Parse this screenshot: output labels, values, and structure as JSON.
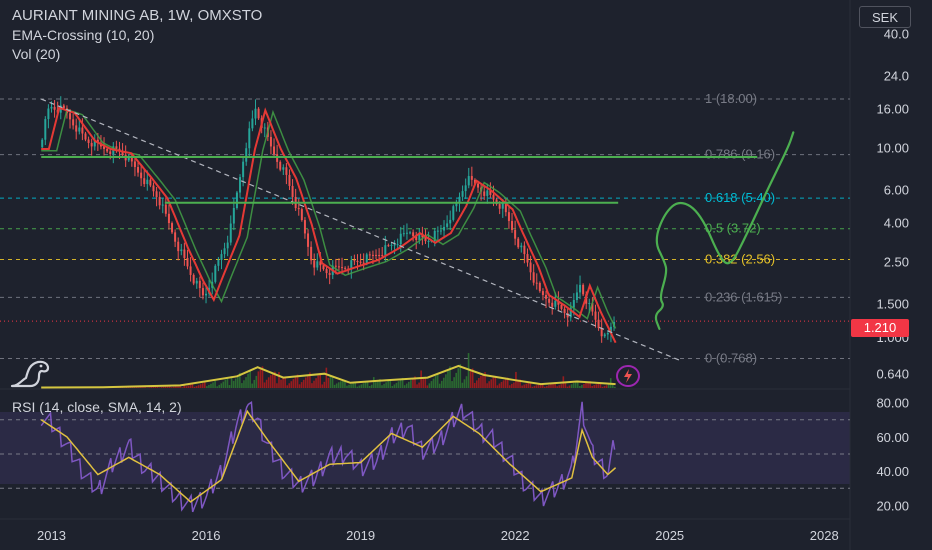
{
  "header": {
    "title": "AURIANT MINING AB, 1W, OMXSTO",
    "indicator_1": "EMA-Crossing (10, 20)",
    "indicator_2": "Vol (20)",
    "rsi_label": "RSI (14, close, SMA, 14, 2)",
    "currency": "SEK",
    "last_price": "1.210"
  },
  "icons": {
    "logo": "dinosaur-logo-icon",
    "event": "lightning-bolt-icon"
  },
  "colors": {
    "background": "#1e222d",
    "candle_up": "#26a69a",
    "candle_down": "#ef5350",
    "ema_red": "#e53935",
    "ema_green": "#43a047",
    "drawing_green": "#4caf50",
    "volume_ma": "#d4c640",
    "rsi_line": "#7e57c2",
    "rsi_ma": "#e0c040",
    "rsi_band": "#2b2a45",
    "last_price_badge": "#f23645"
  },
  "chart_data": [
    {
      "type": "candlestick",
      "title": "AURIANT MINING AB, 1W, OMXSTO",
      "y_scale": "log",
      "ylim": [
        0.53,
        60
      ],
      "xlim": [
        2012.0,
        2028.5
      ],
      "y_ticks": [
        "40.0",
        "24.0",
        "16.00",
        "10.00",
        "6.00",
        "4.00",
        "2.50",
        "1.500",
        "1.000",
        "0.640"
      ],
      "x_ticks": [
        "2013",
        "2016",
        "2019",
        "2022",
        "2025",
        "2028"
      ],
      "last_price": 1.21,
      "price_path": [
        [
          2012.8,
          10.0
        ],
        [
          2013.0,
          16.5
        ],
        [
          2013.3,
          15.5
        ],
        [
          2013.7,
          11.0
        ],
        [
          2014.0,
          10.0
        ],
        [
          2014.4,
          9.5
        ],
        [
          2014.8,
          7.0
        ],
        [
          2015.1,
          5.5
        ],
        [
          2015.5,
          3.0
        ],
        [
          2015.8,
          2.0
        ],
        [
          2016.0,
          1.6
        ],
        [
          2016.2,
          2.2
        ],
        [
          2016.5,
          3.5
        ],
        [
          2016.8,
          10.0
        ],
        [
          2017.0,
          16.0
        ],
        [
          2017.3,
          10.0
        ],
        [
          2017.6,
          7.0
        ],
        [
          2017.9,
          4.0
        ],
        [
          2018.1,
          2.5
        ],
        [
          2018.4,
          2.2
        ],
        [
          2018.8,
          2.4
        ],
        [
          2019.2,
          2.6
        ],
        [
          2019.6,
          3.0
        ],
        [
          2020.0,
          3.6
        ],
        [
          2020.3,
          3.2
        ],
        [
          2020.6,
          3.6
        ],
        [
          2020.9,
          5.0
        ],
        [
          2021.1,
          6.8
        ],
        [
          2021.4,
          6.0
        ],
        [
          2021.8,
          4.8
        ],
        [
          2022.0,
          3.6
        ],
        [
          2022.3,
          2.4
        ],
        [
          2022.5,
          1.7
        ],
        [
          2022.8,
          1.5
        ],
        [
          2023.1,
          1.3
        ],
        [
          2023.3,
          1.9
        ],
        [
          2023.5,
          1.4
        ],
        [
          2023.8,
          0.95
        ],
        [
          2023.95,
          1.21
        ]
      ],
      "fibonacci": [
        {
          "ratio": "1",
          "price": 18.0,
          "label": "1 (18.00)"
        },
        {
          "ratio": "0.786",
          "price": 9.16,
          "label": "0.786 (9.16)"
        },
        {
          "ratio": "0.618",
          "price": 5.4,
          "label": "0.618 (5.40)"
        },
        {
          "ratio": "0.5",
          "price": 3.72,
          "label": "0.5 (3.72)"
        },
        {
          "ratio": "0.382",
          "price": 2.56,
          "label": "0.382 (2.56)"
        },
        {
          "ratio": "0.236",
          "price": 1.615,
          "label": "0.236 (1.615)"
        },
        {
          "ratio": "0",
          "price": 0.768,
          "label": "0 (0.768)"
        }
      ],
      "annotations": {
        "trendline": [
          [
            2012.8,
            18.0
          ],
          [
            2025.2,
            0.75
          ]
        ],
        "resistance_lines": [
          {
            "price": 8.9,
            "from": 2012.8,
            "to": 2026.7
          },
          {
            "price": 5.1,
            "from": 2015.2,
            "to": 2024.0
          }
        ],
        "projected_path": [
          [
            2024.8,
            1.1
          ],
          [
            2024.7,
            1.3
          ],
          [
            2024.9,
            1.45
          ],
          [
            2024.8,
            1.6
          ],
          [
            2024.95,
            2.2
          ],
          [
            2024.9,
            2.5
          ],
          [
            2024.7,
            3.2
          ],
          [
            2024.9,
            4.5
          ],
          [
            2025.2,
            5.3
          ],
          [
            2025.6,
            4.5
          ],
          [
            2026.0,
            2.5
          ],
          [
            2026.2,
            2.4
          ],
          [
            2026.5,
            3.5
          ],
          [
            2026.9,
            6.0
          ],
          [
            2027.3,
            10.0
          ],
          [
            2027.4,
            12.0
          ]
        ]
      },
      "volume_ma": [
        [
          2012.8,
          0.02
        ],
        [
          2014.0,
          0.03
        ],
        [
          2015.5,
          0.1
        ],
        [
          2016.6,
          0.45
        ],
        [
          2017.0,
          0.8
        ],
        [
          2017.5,
          0.4
        ],
        [
          2018.3,
          0.55
        ],
        [
          2018.8,
          0.2
        ],
        [
          2019.5,
          0.3
        ],
        [
          2020.3,
          0.4
        ],
        [
          2020.9,
          0.85
        ],
        [
          2021.4,
          0.5
        ],
        [
          2022.0,
          0.3
        ],
        [
          2022.5,
          0.15
        ],
        [
          2023.2,
          0.25
        ],
        [
          2023.95,
          0.15
        ]
      ]
    },
    {
      "type": "line",
      "title": "RSI (14, close, SMA, 14, 2)",
      "ylim": [
        12,
        88
      ],
      "y_ticks": [
        "80.00",
        "60.00",
        "40.00",
        "20.00"
      ],
      "band": [
        30,
        70
      ],
      "series": [
        {
          "role": "rsi",
          "x": [
            2012.8,
            2013.0,
            2013.3,
            2013.6,
            2013.9,
            2014.2,
            2014.5,
            2014.8,
            2015.1,
            2015.4,
            2015.7,
            2016.0,
            2016.3,
            2016.6,
            2016.8,
            2017.0,
            2017.2,
            2017.5,
            2017.8,
            2018.1,
            2018.4,
            2018.7,
            2019.0,
            2019.3,
            2019.6,
            2019.9,
            2020.2,
            2020.5,
            2020.8,
            2021.0,
            2021.3,
            2021.6,
            2021.9,
            2022.2,
            2022.5,
            2022.8,
            2023.1,
            2023.3,
            2023.5,
            2023.8,
            2023.95
          ],
          "values": [
            72,
            68,
            55,
            40,
            28,
            45,
            55,
            42,
            35,
            25,
            20,
            25,
            40,
            68,
            78,
            70,
            55,
            40,
            32,
            36,
            48,
            50,
            42,
            46,
            60,
            66,
            52,
            56,
            70,
            76,
            64,
            58,
            46,
            32,
            24,
            30,
            40,
            76,
            50,
            38,
            60
          ]
        },
        {
          "role": "rsi-ma",
          "x": [
            2012.8,
            2013.3,
            2013.9,
            2014.5,
            2015.1,
            2015.7,
            2016.3,
            2016.8,
            2017.2,
            2017.8,
            2018.4,
            2019.0,
            2019.6,
            2020.2,
            2020.8,
            2021.3,
            2021.9,
            2022.5,
            2023.1,
            2023.3,
            2023.5,
            2023.8,
            2023.95
          ],
          "values": [
            70,
            60,
            38,
            48,
            38,
            22,
            35,
            75,
            58,
            34,
            44,
            45,
            62,
            54,
            72,
            62,
            44,
            28,
            36,
            64,
            48,
            38,
            42
          ]
        }
      ]
    }
  ]
}
